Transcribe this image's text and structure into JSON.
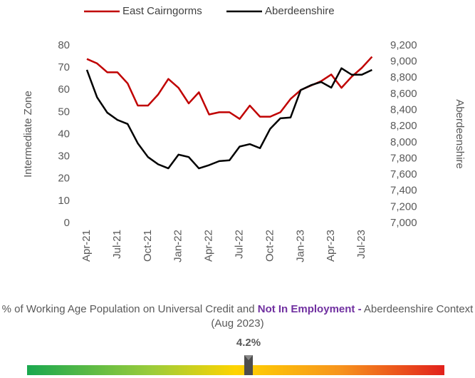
{
  "chart_data": {
    "type": "line",
    "categories": [
      "Apr-21",
      null,
      null,
      "Jul-21",
      null,
      null,
      "Oct-21",
      null,
      null,
      "Jan-22",
      null,
      null,
      "Apr-22",
      null,
      null,
      "Jul-22",
      null,
      null,
      "Oct-22",
      null,
      null,
      "Jan-23",
      null,
      null,
      "Apr-23",
      null,
      null,
      "Jul-23",
      null
    ],
    "series": [
      {
        "name": "East Cairngorms",
        "color": "#c00000",
        "values": [
          74,
          72,
          68,
          68,
          63,
          53,
          53,
          58,
          65,
          61,
          54,
          59,
          49,
          50,
          50,
          47,
          53,
          48,
          48,
          50,
          56,
          60,
          62,
          64,
          67,
          61,
          66,
          70,
          75
        ]
      },
      {
        "name": "Aberdeenshire",
        "color": "#000000",
        "axis": "y2",
        "values": [
          8900,
          8560,
          8370,
          8280,
          8230,
          7990,
          7820,
          7730,
          7680,
          7850,
          7820,
          7680,
          7720,
          7770,
          7780,
          7950,
          7980,
          7930,
          8170,
          8300,
          8310,
          8650,
          8710,
          8750,
          8680,
          8920,
          8840,
          8840,
          8900
        ]
      }
    ],
    "ylabel": "Intermediate Zone",
    "y2label": "Aberdeenshire",
    "ylim": [
      0,
      80
    ],
    "yticks": [
      0,
      10,
      20,
      30,
      40,
      50,
      60,
      70,
      80
    ],
    "y2lim": [
      7000,
      9200
    ],
    "y2ticks": [
      {
        "value": 7000,
        "label": "7,000"
      },
      {
        "value": 7200,
        "label": "7,200"
      },
      {
        "value": 7400,
        "label": "7,400"
      },
      {
        "value": 7600,
        "label": "7,600"
      },
      {
        "value": 7800,
        "label": "7,800"
      },
      {
        "value": 8000,
        "label": "8,000"
      },
      {
        "value": 8200,
        "label": "8,200"
      },
      {
        "value": 8400,
        "label": "8,400"
      },
      {
        "value": 8600,
        "label": "8,600"
      },
      {
        "value": 8800,
        "label": "8,800"
      },
      {
        "value": 9000,
        "label": "9,000"
      },
      {
        "value": 9200,
        "label": "9,200"
      }
    ],
    "legend": "top",
    "grid": false
  },
  "gauge": {
    "title_parts": [
      "% of Working Age Population on Universal Credit and ",
      "Not In Employment -",
      " Aberdeenshire Context (Aug 2023)"
    ],
    "value_label": "4.2%"
  }
}
